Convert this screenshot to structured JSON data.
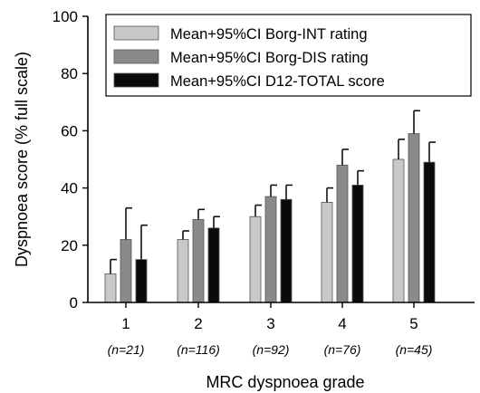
{
  "chart_data": {
    "type": "bar",
    "title": "",
    "xlabel": "MRC dyspnoea grade",
    "ylabel": "Dyspnoea score (% full scale)",
    "ylim": [
      0,
      100
    ],
    "yticks": [
      "0",
      "20",
      "40",
      "60",
      "80",
      "100"
    ],
    "categories": [
      "1",
      "2",
      "3",
      "4",
      "5"
    ],
    "category_notes": [
      "(n=21)",
      "(n=116)",
      "(n=92)",
      "(n=76)",
      "(n=45)"
    ],
    "grid": false,
    "legend_position": "top-right",
    "series": [
      {
        "name": "Mean+95%CI Borg-INT rating",
        "color": "#c8c8c8",
        "values": [
          10,
          22,
          30,
          35,
          50
        ],
        "ci_upper": [
          15,
          25,
          34,
          40,
          57
        ]
      },
      {
        "name": "Mean+95%CI Borg-DIS rating",
        "color": "#8a8a8a",
        "values": [
          22,
          29,
          37,
          48,
          59
        ],
        "ci_upper": [
          33,
          32.5,
          41,
          53.5,
          67
        ]
      },
      {
        "name": "Mean+95%CI D12-TOTAL score",
        "color": "#0a0a0a",
        "values": [
          15,
          26,
          36,
          41,
          49
        ],
        "ci_upper": [
          27,
          30,
          41,
          46,
          56
        ]
      }
    ]
  }
}
